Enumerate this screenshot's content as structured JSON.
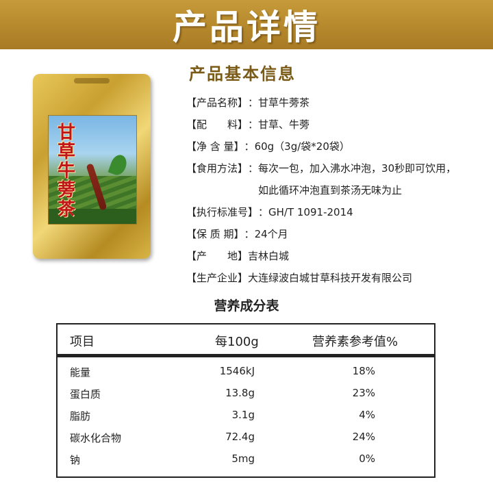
{
  "banner": {
    "title": "产品详情"
  },
  "info": {
    "heading": "产品基本信息",
    "rows": [
      {
        "label": "【产品名称】",
        "sep": "：",
        "value": "甘草牛蒡茶"
      },
      {
        "label": "【配　　料】",
        "sep": "：",
        "value": "甘草、牛蒡"
      },
      {
        "label": "【净 含 量】",
        "sep": "：",
        "value": "60g（3g/袋*20袋）"
      },
      {
        "label": "【食用方法】",
        "sep": "：",
        "value": "每次一包，加入沸水冲泡，30秒即可饮用，如此循环冲泡直到茶汤无味为止"
      },
      {
        "label": "【执行标准号】",
        "sep": "：",
        "value": "GH/T 1091-2014"
      },
      {
        "label": "【保 质 期】",
        "sep": "：",
        "value": "24个月"
      },
      {
        "label": "【产　　地】",
        "sep": "",
        "value": "吉林白城"
      },
      {
        "label": "【生产企业】",
        "sep": "",
        "value": "大连绿波白城甘草科技开发有限公司"
      }
    ]
  },
  "product_image": {
    "name_on_pack": "甘草牛蒡茶"
  },
  "nutrition": {
    "title": "营养成分表",
    "headers": [
      "项目",
      "每100g",
      "营养素参考值%"
    ],
    "rows": [
      [
        "能量",
        "1546kJ",
        "18%"
      ],
      [
        "蛋白质",
        "13.8g",
        "23%"
      ],
      [
        "脂肪",
        "3.1g",
        "4%"
      ],
      [
        "碳水化合物",
        "72.4g",
        "24%"
      ],
      [
        "钠",
        "5mg",
        "0%"
      ]
    ]
  }
}
